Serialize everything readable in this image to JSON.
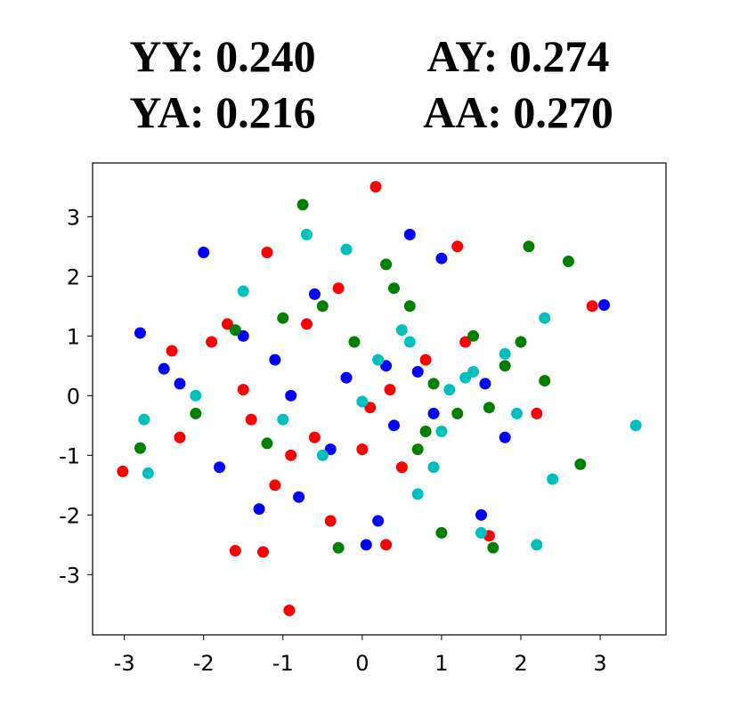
{
  "chart_data": {
    "type": "scatter",
    "title_lines": [
      [
        "YY: 0.240",
        "AY: 0.274"
      ],
      [
        "YA: 0.216",
        "AA: 0.270"
      ]
    ],
    "xlim": [
      -3.4,
      3.83
    ],
    "ylim": [
      -4.01,
      3.9
    ],
    "xticks": [
      -3,
      -2,
      -1,
      0,
      1,
      2,
      3
    ],
    "yticks": [
      -3,
      -2,
      -1,
      0,
      1,
      2,
      3
    ],
    "grid": false,
    "series": [
      {
        "color": "#ff0000",
        "x": [
          0.17,
          -0.92,
          -3.02,
          2.9,
          1.2,
          -2.4,
          -1.6,
          -1.25,
          -0.4,
          0.3,
          -1.1,
          -0.7,
          0.0,
          -0.2,
          -1.9,
          -1.4,
          -0.6,
          0.1,
          0.5,
          1.3,
          -1.7,
          -1.5,
          -0.3,
          0.35,
          2.2,
          1.6,
          -2.3,
          -0.9,
          0.8,
          -1.2
        ],
        "values": [
          3.5,
          -3.6,
          -1.27,
          1.5,
          2.5,
          0.75,
          -2.6,
          -2.62,
          -2.1,
          -2.5,
          -1.5,
          1.2,
          -0.9,
          0.3,
          0.9,
          -0.4,
          -0.7,
          -0.2,
          -1.2,
          0.9,
          1.2,
          0.1,
          1.8,
          0.1,
          -0.3,
          -2.35,
          -0.7,
          -1.0,
          0.6,
          2.4
        ]
      },
      {
        "color": "#0000ff",
        "x": [
          -2.0,
          0.6,
          3.05,
          -2.8,
          1.0,
          -2.3,
          -1.1,
          -0.4,
          0.2,
          -0.8,
          1.5,
          -1.5,
          -0.2,
          0.3,
          -0.9,
          0.9,
          1.8,
          -2.5,
          0.05,
          1.55,
          -1.3,
          -0.6,
          0.7,
          -1.8,
          0.4
        ],
        "values": [
          2.4,
          2.7,
          1.52,
          1.05,
          2.3,
          0.2,
          0.6,
          -0.9,
          -2.1,
          -1.7,
          -2.0,
          1.0,
          0.3,
          0.5,
          0.0,
          -0.3,
          -0.7,
          0.45,
          -2.5,
          0.2,
          -1.9,
          1.7,
          0.4,
          -1.2,
          -0.5
        ]
      },
      {
        "color": "#008000",
        "x": [
          -0.75,
          2.6,
          2.1,
          -2.8,
          2.75,
          1.65,
          -0.1,
          0.6,
          1.2,
          0.9,
          1.8,
          2.3,
          0.4,
          -0.5,
          -1.0,
          1.4,
          0.8,
          -2.1,
          -1.6,
          1.0,
          0.3,
          2.0,
          -0.3,
          0.7,
          1.6,
          -1.2
        ],
        "values": [
          3.2,
          2.25,
          2.5,
          -0.88,
          -1.15,
          -2.55,
          0.9,
          1.5,
          -0.3,
          0.2,
          0.5,
          0.25,
          1.8,
          1.5,
          1.3,
          1.0,
          -0.6,
          -0.3,
          1.1,
          -2.3,
          2.2,
          0.9,
          -2.55,
          -0.9,
          -0.2,
          -0.8
        ]
      },
      {
        "color": "#00bfbf",
        "x": [
          3.45,
          -2.75,
          -2.7,
          -0.7,
          2.2,
          2.4,
          1.3,
          1.0,
          0.7,
          1.5,
          2.3,
          -1.5,
          -0.2,
          0.5,
          1.1,
          0.9,
          1.8,
          -2.1,
          -1.0,
          0.0,
          1.4,
          0.6,
          1.95,
          -0.5,
          0.2
        ],
        "values": [
          -0.5,
          -0.4,
          -1.3,
          2.7,
          -2.5,
          -1.4,
          0.3,
          -0.6,
          -1.65,
          -2.3,
          1.3,
          1.75,
          2.45,
          1.1,
          0.1,
          -1.2,
          0.7,
          0.0,
          -0.4,
          -0.1,
          0.4,
          0.9,
          -0.3,
          -1.0,
          0.6
        ]
      }
    ]
  }
}
